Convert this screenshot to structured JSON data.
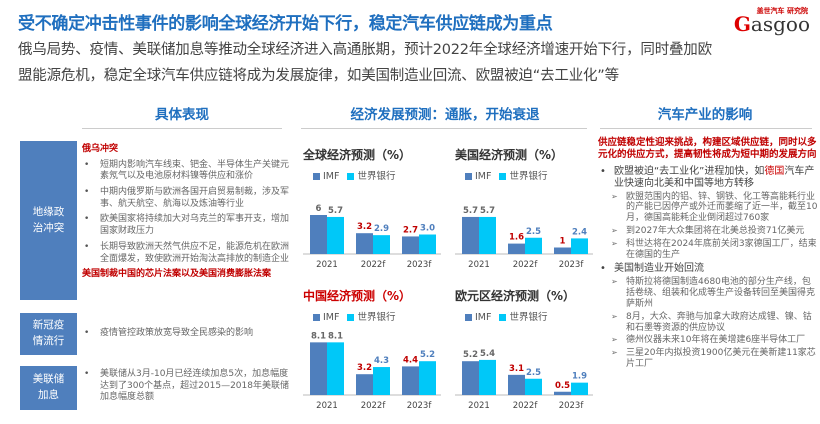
{
  "header": {
    "title": "受不确定冲击性事件的影响全球经济开始下行，稳定汽车供应链成为重点",
    "subtitle_line1": "俄乌局势、疫情、美联储加息等推动全球经济进入高通胀期，预计2022年全球经济增速开始下行，同时叠加欧",
    "subtitle_line2": "盟能源危机，稳定全球汽车供应链将成为发展旋律，如美国制造业回流、欧盟被迫“去工业化”等",
    "logo": "盖世汽车 研究院 Gasgoo"
  },
  "left": {
    "heading": "具体表现",
    "sections": [
      {
        "label": "地缘政治冲突",
        "subhead": "俄乌冲突",
        "items": [
          "短期内影响汽车线束、钯金、半导体生产关键元素氖气以及电池原材料镍等供应和涨价",
          "中期内俄罗斯与欧洲各国开启贸易制裁，涉及军事、航天航空、航海以及炼油等行业",
          "欧美国家将持续加大对乌克兰的军事开支，增加国家财政压力",
          "长期导致欧洲天然气供应不足，能源危机在欧洲全面爆发，致使欧洲开始淘汰高排放的制造企业"
        ],
        "footer": "美国制裁中国的芯片法案以及美国消费膨胀法案"
      },
      {
        "label": "新冠疫情流行",
        "items": [
          "疫情管控政策放宽导致全民感染的影响"
        ]
      },
      {
        "label": "美联储加息",
        "items": [
          "美联储从3月-10月已经连续加息5次，加息幅度达到了300个基点，超过2015—2018年美联储加息幅度总额"
        ]
      }
    ]
  },
  "middle": {
    "heading": "经济发展预测：通胀，开始衰退"
  },
  "chart_data": [
    {
      "type": "bar",
      "title": "全球经济预测（%）",
      "categories": [
        "2021",
        "2022f",
        "2023f"
      ],
      "series": [
        {
          "name": "IMF",
          "values": [
            6,
            3.2,
            2.7
          ]
        },
        {
          "name": "世界银行",
          "values": [
            5.7,
            2.9,
            3.0
          ]
        }
      ]
    },
    {
      "type": "bar",
      "title": "美国经济预测（%）",
      "categories": [
        "2021",
        "2022f",
        "2023f"
      ],
      "series": [
        {
          "name": "IMF",
          "values": [
            5.7,
            1.6,
            1
          ]
        },
        {
          "name": "世界银行",
          "values": [
            5.7,
            2.5,
            2.4
          ]
        }
      ]
    },
    {
      "type": "bar",
      "title": "中国经济预测（%）",
      "categories": [
        "2021",
        "2022f",
        "2023f"
      ],
      "series": [
        {
          "name": "IMF",
          "values": [
            8.1,
            3.2,
            4.4
          ]
        },
        {
          "name": "世界银行",
          "values": [
            8.1,
            4.3,
            5.2
          ]
        }
      ]
    },
    {
      "type": "bar",
      "title": "欧元区经济预测（%）",
      "categories": [
        "2021",
        "2022f",
        "2023f"
      ],
      "series": [
        {
          "name": "IMF",
          "values": [
            5.2,
            3.1,
            0.5
          ]
        },
        {
          "name": "世界银行",
          "values": [
            5.4,
            2.5,
            1.9
          ]
        }
      ]
    }
  ],
  "colors": {
    "imf": "#4f7fbd",
    "wb": "#00c8f8",
    "accent": "#1f6fbf",
    "red": "#c00000"
  },
  "right": {
    "heading": "汽车产业的影响",
    "intro": "供应链稳定性迎来挑战，构建区域供应链，同时以多元化的供应方式，提高韧性将成为短中期的发展方向",
    "b1_pre": "欧盟被迫“去工业化”进程加快，如",
    "b1_hl": "德国",
    "b1_post": "汽车产业快速向北美和中国等地方转移",
    "b1_items": [
      "欧盟范围内的铝、锌、钢铁、化工等高能耗行业的产能已因停产或外迁而萎缩了近一半，截至10月，德国高能耗企业倒闭超过760家",
      "到2027年大众集团将在北美总投资71亿美元",
      "科世达将在2024年底前关闭3家德国工厂，结束在德国的生产"
    ],
    "b2": "美国制造业开始回流",
    "b2_items": [
      "特斯拉将德国制造4680电池的部分生产线，包括卷绕、组装和化成等生产设备转回至美国得克萨斯州",
      "8月，大众、奔驰与加拿大政府达成锂、镍、钴和石墨等资源的供应协议",
      "德州仪器未来10年将在美增建6座半导体工厂",
      "三星20年内拟投资1900亿美元在美新建11家芯片工厂"
    ]
  }
}
